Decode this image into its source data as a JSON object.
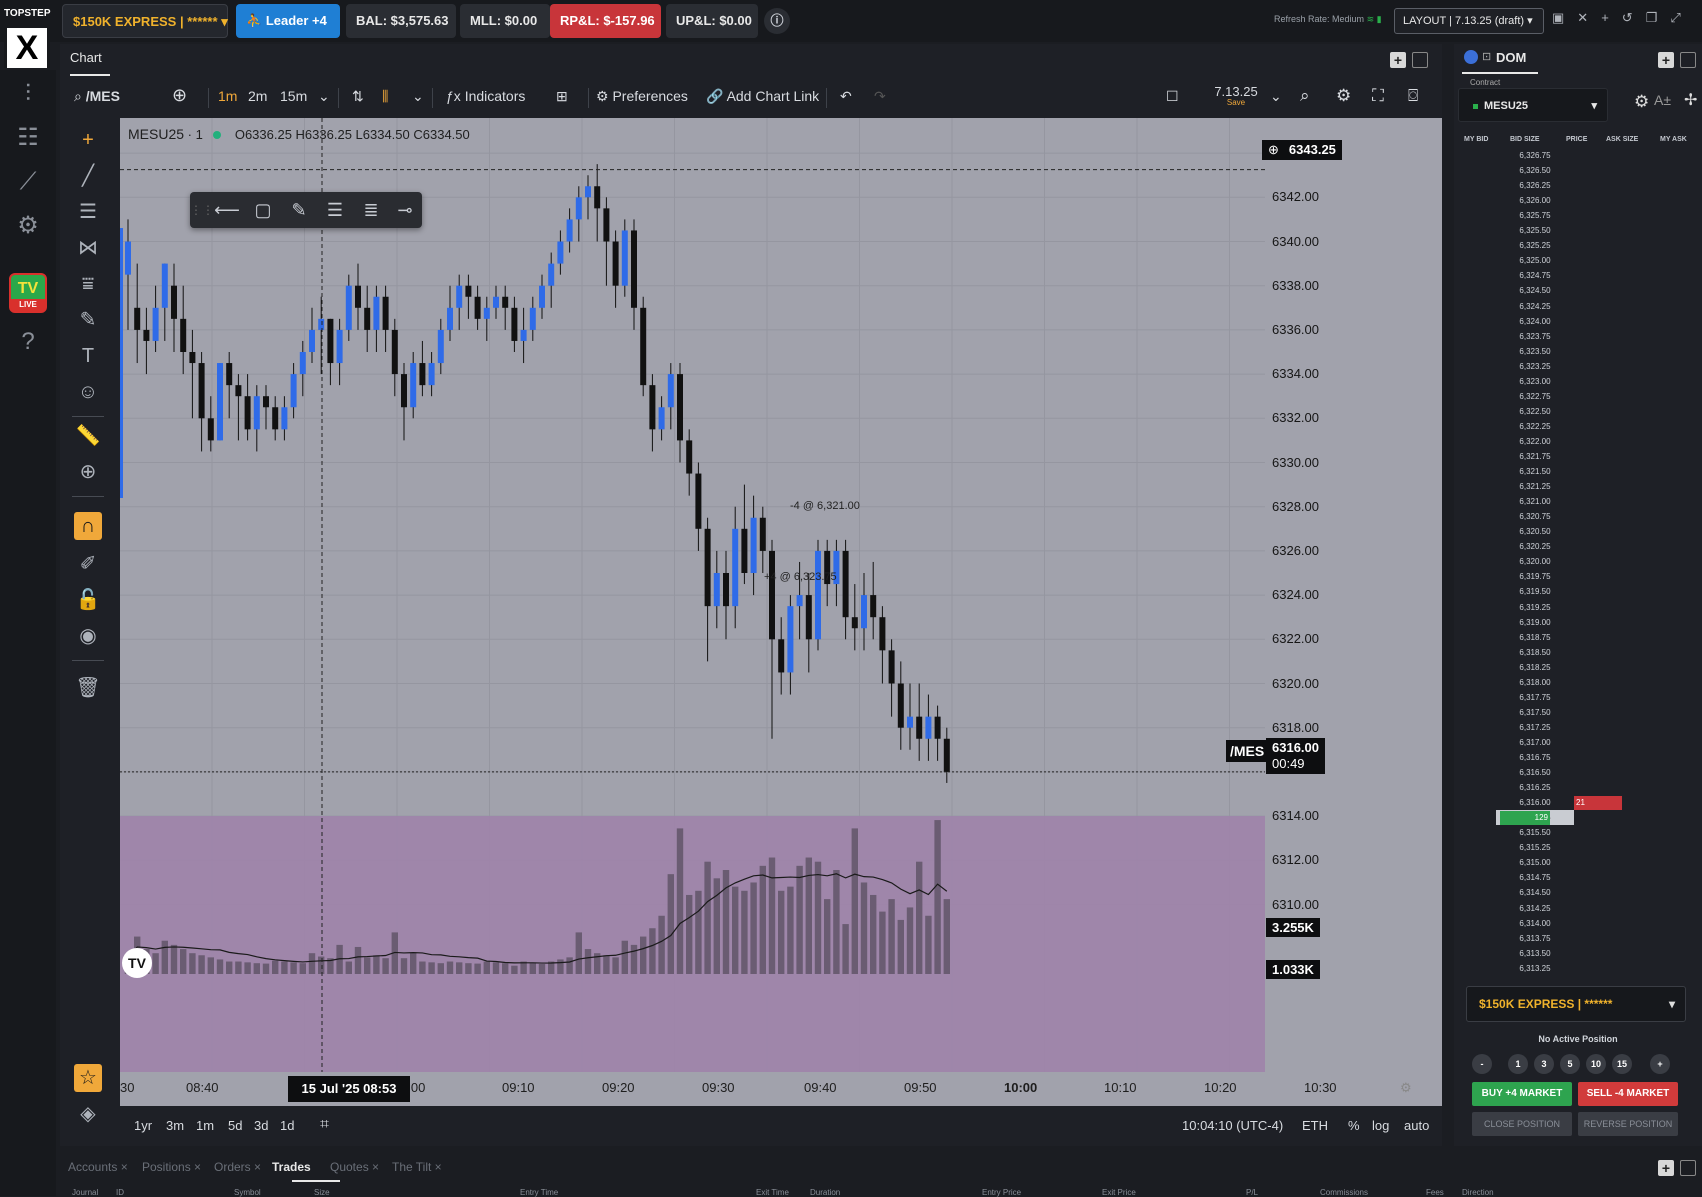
{
  "topbar": {
    "brand_top": "TOPSTEP",
    "brand_mark": "X",
    "account": "$150K EXPRESS | ******",
    "leader": "Leader +4",
    "balance": "BAL: $3,575.63",
    "mll": "MLL: $0.00",
    "rpl": "RP&L: $-157.96",
    "upl": "UP&L: $0.00",
    "refresh": "Refresh Rate: Medium",
    "layout": "LAYOUT | 7.13.25 (draft)"
  },
  "leftnav": {
    "tv_label": "TV",
    "live_label": "LIVE"
  },
  "chart_panel": {
    "tab": "Chart",
    "symbol_search": "/MES",
    "intervals": [
      "1m",
      "2m",
      "15m"
    ],
    "indicators": "Indicators",
    "preferences": "Preferences",
    "add_chart_link": "Add Chart Link",
    "layout_name": "7.13.25",
    "layout_save": "Save"
  },
  "chart": {
    "legend": {
      "symbol": "MESU25",
      "interval": "1",
      "ohlc": "O6336.25  H6336.25  L6334.50  C6334.50"
    },
    "price_ticks": [
      "6344.00",
      "6342.00",
      "6340.00",
      "6338.00",
      "6336.00",
      "6334.00",
      "6332.00",
      "6330.00",
      "6328.00",
      "6326.00",
      "6324.00",
      "6322.00",
      "6320.00",
      "6318.00",
      "6314.00",
      "6312.00",
      "6310.00"
    ],
    "crosshair_price": "6343.25",
    "last_symbol": "/MES",
    "last_price": "6316.00",
    "countdown": "00:49",
    "volume_label_high": "3.255K",
    "volume_label_low": "1.033K",
    "order_label_1": "-4 @ 6,321.00",
    "order_label_2": "+4 @ 6,323.75",
    "time_ticks": [
      "30",
      "08:40",
      "9:00",
      "09:10",
      "09:20",
      "09:30",
      "09:40",
      "09:50",
      "10:00",
      "10:10",
      "10:20",
      "10:30"
    ],
    "cursor_time": "15 Jul '25   08:53",
    "ranges": [
      "1yr",
      "3m",
      "1m",
      "5d",
      "3d",
      "1d"
    ],
    "clock": "10:04:10 (UTC-4)",
    "session": "ETH",
    "scale_pct": "%",
    "scale_log": "log",
    "scale_auto": "auto"
  },
  "chart_data": {
    "type": "candlestick",
    "symbol": "MESU25",
    "interval": "1",
    "ylim": [
      6309,
      6345
    ],
    "candles": [
      [
        6338.5,
        6340.0,
        6337.0,
        6341.0,
        6336.0
      ],
      [
        6337.0,
        6336.0,
        6335.0,
        6339.0,
        6334.5
      ],
      [
        6336.0,
        6335.5,
        6334.5,
        6337.0,
        6334.0
      ],
      [
        6335.5,
        6337.0,
        6335.0,
        6338.0,
        6335.0
      ],
      [
        6337.0,
        6339.0,
        6336.0,
        6339.0,
        6335.5
      ],
      [
        6338.0,
        6336.5,
        6335.5,
        6339.0,
        6335.0
      ],
      [
        6336.5,
        6335.0,
        6334.0,
        6338.0,
        6334.0
      ],
      [
        6335.0,
        6334.5,
        6332.5,
        6336.0,
        6332.0
      ],
      [
        6334.5,
        6332.0,
        6330.5,
        6335.0,
        6330.5
      ],
      [
        6332.0,
        6331.0,
        6330.5,
        6333.0,
        6330.5
      ],
      [
        6331.0,
        6334.5,
        6331.0,
        6334.5,
        6331.0
      ],
      [
        6334.5,
        6333.5,
        6332.0,
        6335.0,
        6332.0
      ],
      [
        6333.5,
        6333.0,
        6331.5,
        6334.0,
        6331.0
      ],
      [
        6333.0,
        6331.5,
        6331.0,
        6334.0,
        6331.0
      ],
      [
        6331.5,
        6333.0,
        6331.0,
        6333.5,
        6330.5
      ],
      [
        6333.0,
        6332.5,
        6332.0,
        6333.5,
        6331.5
      ],
      [
        6332.5,
        6331.5,
        6331.0,
        6333.0,
        6331.0
      ],
      [
        6331.5,
        6332.5,
        6331.0,
        6333.0,
        6331.0
      ],
      [
        6332.5,
        6334.0,
        6332.0,
        6334.5,
        6332.0
      ],
      [
        6334.0,
        6335.0,
        6333.5,
        6335.5,
        6333.0
      ],
      [
        6335.0,
        6336.0,
        6334.5,
        6337.0,
        6334.5
      ],
      [
        6336.0,
        6336.5,
        6335.0,
        6337.5,
        6334.0
      ],
      [
        6336.5,
        6334.5,
        6334.0,
        6336.5,
        6333.5
      ],
      [
        6334.5,
        6336.0,
        6334.0,
        6336.5,
        6333.5
      ],
      [
        6336.0,
        6338.0,
        6336.0,
        6338.5,
        6335.5
      ],
      [
        6338.0,
        6337.0,
        6336.5,
        6339.0,
        6336.0
      ],
      [
        6337.0,
        6336.0,
        6335.5,
        6338.0,
        6335.0
      ],
      [
        6336.0,
        6337.5,
        6335.5,
        6338.0,
        6335.0
      ],
      [
        6337.5,
        6336.0,
        6335.5,
        6338.0,
        6335.0
      ],
      [
        6336.0,
        6334.0,
        6333.5,
        6336.5,
        6333.0
      ],
      [
        6334.0,
        6332.5,
        6332.0,
        6334.5,
        6331.0
      ],
      [
        6332.5,
        6334.5,
        6332.0,
        6335.0,
        6332.0
      ],
      [
        6334.5,
        6333.5,
        6333.0,
        6335.5,
        6333.0
      ],
      [
        6333.5,
        6334.5,
        6333.0,
        6335.0,
        6333.0
      ],
      [
        6334.5,
        6336.0,
        6334.0,
        6336.5,
        6334.0
      ],
      [
        6336.0,
        6337.0,
        6335.5,
        6338.0,
        6335.5
      ],
      [
        6337.0,
        6338.0,
        6336.5,
        6338.5,
        6336.0
      ],
      [
        6338.0,
        6337.5,
        6337.0,
        6338.5,
        6336.5
      ],
      [
        6337.5,
        6336.5,
        6336.0,
        6338.0,
        6336.0
      ],
      [
        6336.5,
        6337.0,
        6336.0,
        6337.5,
        6335.5
      ],
      [
        6337.0,
        6337.5,
        6336.5,
        6338.0,
        6336.5
      ],
      [
        6337.5,
        6337.0,
        6336.5,
        6338.0,
        6336.0
      ],
      [
        6337.0,
        6335.5,
        6335.0,
        6337.5,
        6335.0
      ],
      [
        6335.5,
        6336.0,
        6335.0,
        6337.0,
        6334.5
      ],
      [
        6336.0,
        6337.0,
        6335.5,
        6337.5,
        6335.5
      ],
      [
        6337.0,
        6338.0,
        6336.5,
        6338.5,
        6336.5
      ],
      [
        6338.0,
        6339.0,
        6337.5,
        6339.5,
        6337.0
      ],
      [
        6339.0,
        6340.0,
        6338.5,
        6340.5,
        6338.5
      ],
      [
        6340.0,
        6341.0,
        6339.5,
        6341.5,
        6339.5
      ],
      [
        6341.0,
        6342.0,
        6340.5,
        6342.5,
        6340.0
      ],
      [
        6342.0,
        6342.5,
        6341.5,
        6343.0,
        6341.0
      ],
      [
        6342.5,
        6341.5,
        6340.0,
        6343.5,
        6340.0
      ],
      [
        6341.5,
        6340.0,
        6338.5,
        6342.0,
        6338.0
      ],
      [
        6340.0,
        6338.0,
        6337.0,
        6340.5,
        6337.0
      ],
      [
        6338.0,
        6340.5,
        6337.5,
        6341.0,
        6337.5
      ],
      [
        6340.5,
        6337.0,
        6336.0,
        6341.0,
        6336.0
      ],
      [
        6337.0,
        6333.5,
        6333.0,
        6337.5,
        6333.0
      ],
      [
        6333.5,
        6331.5,
        6331.0,
        6334.0,
        6330.5
      ],
      [
        6331.5,
        6332.5,
        6331.0,
        6333.0,
        6331.0
      ],
      [
        6332.5,
        6334.0,
        6332.0,
        6334.5,
        6331.5
      ],
      [
        6334.0,
        6331.0,
        6330.5,
        6334.5,
        6330.0
      ],
      [
        6331.0,
        6329.5,
        6329.0,
        6331.5,
        6328.5
      ],
      [
        6329.5,
        6327.0,
        6326.5,
        6330.0,
        6326.0
      ],
      [
        6327.0,
        6323.5,
        6322.0,
        6327.5,
        6321.0
      ],
      [
        6323.5,
        6325.0,
        6323.0,
        6326.0,
        6322.5
      ],
      [
        6325.0,
        6323.5,
        6322.5,
        6326.0,
        6322.0
      ],
      [
        6323.5,
        6327.0,
        6323.0,
        6328.0,
        6322.5
      ],
      [
        6327.0,
        6325.0,
        6324.5,
        6329.0,
        6324.5
      ],
      [
        6325.0,
        6327.5,
        6324.5,
        6328.5,
        6324.0
      ],
      [
        6327.5,
        6326.0,
        6325.5,
        6328.0,
        6325.0
      ],
      [
        6326.0,
        6322.0,
        6318.0,
        6326.5,
        6317.5
      ],
      [
        6322.0,
        6320.5,
        6320.0,
        6323.0,
        6319.5
      ],
      [
        6320.5,
        6323.5,
        6320.0,
        6324.0,
        6319.5
      ],
      [
        6323.5,
        6324.0,
        6322.5,
        6325.5,
        6322.0
      ],
      [
        6324.0,
        6322.0,
        6320.5,
        6325.0,
        6320.5
      ],
      [
        6322.0,
        6326.0,
        6321.5,
        6326.5,
        6321.5
      ],
      [
        6326.0,
        6324.5,
        6324.0,
        6326.5,
        6323.5
      ],
      [
        6324.5,
        6326.0,
        6324.0,
        6326.5,
        6323.5
      ],
      [
        6326.0,
        6323.0,
        6322.5,
        6326.5,
        6322.0
      ],
      [
        6323.0,
        6322.5,
        6322.0,
        6324.5,
        6321.5
      ],
      [
        6322.5,
        6324.0,
        6322.0,
        6325.0,
        6321.5
      ],
      [
        6324.0,
        6323.0,
        6322.5,
        6325.5,
        6322.0
      ],
      [
        6323.0,
        6321.5,
        6320.5,
        6323.5,
        6320.0
      ],
      [
        6321.5,
        6320.0,
        6319.0,
        6322.0,
        6318.5
      ],
      [
        6320.0,
        6318.0,
        6317.5,
        6321.0,
        6317.0
      ],
      [
        6318.0,
        6318.5,
        6317.5,
        6320.0,
        6317.0
      ],
      [
        6318.5,
        6317.5,
        6317.0,
        6320.0,
        6316.5
      ],
      [
        6317.5,
        6318.5,
        6317.0,
        6319.5,
        6316.5
      ],
      [
        6318.5,
        6317.5,
        6317.0,
        6319.0,
        6316.5
      ],
      [
        6317.5,
        6316.0,
        6315.5,
        6318.0,
        6315.5
      ]
    ],
    "volume_ylim": [
      0,
      5000
    ],
    "volumes": [
      400,
      900,
      600,
      500,
      800,
      700,
      600,
      500,
      450,
      400,
      350,
      300,
      300,
      280,
      260,
      250,
      320,
      300,
      280,
      260,
      500,
      420,
      380,
      700,
      300,
      650,
      400,
      450,
      380,
      1000,
      380,
      500,
      300,
      280,
      260,
      300,
      280,
      260,
      250,
      300,
      280,
      260,
      200,
      300,
      260,
      240,
      300,
      350,
      400,
      1000,
      600,
      500,
      450,
      400,
      800,
      700,
      900,
      1100,
      1400,
      2400,
      3500,
      1900,
      2000,
      2700,
      2300,
      2500,
      2100,
      2000,
      2200,
      2600,
      2800,
      2000,
      2100,
      2600,
      2800,
      2700,
      1800,
      2500,
      1200,
      3500,
      2200,
      1900,
      1500,
      1800,
      1300,
      1600,
      2700,
      1400,
      3700,
      1800
    ]
  },
  "dom": {
    "tab": "DOM",
    "contract_label": "Contract",
    "contract": "MESU25",
    "headers": [
      "MY BID",
      "BID SIZE",
      "PRICE",
      "ASK SIZE",
      "MY ASK"
    ],
    "prices": [
      "6,326.75",
      "6,326.50",
      "6,326.25",
      "6,326.00",
      "6,325.75",
      "6,325.50",
      "6,325.25",
      "6,325.00",
      "6,324.75",
      "6,324.50",
      "6,324.25",
      "6,324.00",
      "6,323.75",
      "6,323.50",
      "6,323.25",
      "6,323.00",
      "6,322.75",
      "6,322.50",
      "6,322.25",
      "6,322.00",
      "6,321.75",
      "6,321.50",
      "6,321.25",
      "6,321.00",
      "6,320.75",
      "6,320.50",
      "6,320.25",
      "6,320.00",
      "6,319.75",
      "6,319.50",
      "6,319.25",
      "6,319.00",
      "6,318.75",
      "6,318.50",
      "6,318.25",
      "6,318.00",
      "6,317.75",
      "6,317.50",
      "6,317.25",
      "6,317.00",
      "6,316.75",
      "6,316.50",
      "6,316.25",
      "6,316.00",
      "6,315.75",
      "6,315.50",
      "6,315.25",
      "6,315.00",
      "6,314.75",
      "6,314.50",
      "6,314.25",
      "6,314.00",
      "6,313.75",
      "6,313.50",
      "6,313.25"
    ],
    "bid_size": "129",
    "ask_size": "21",
    "account": "$150K EXPRESS | ******",
    "no_position": "No Active Position",
    "qty_minus": "-",
    "qty_plus": "+",
    "quantities": [
      "1",
      "3",
      "5",
      "10",
      "15"
    ],
    "buy": "BUY +4 MARKET",
    "sell": "SELL -4 MARKET",
    "close": "CLOSE POSITION",
    "reverse": "REVERSE POSITION"
  },
  "bottom": {
    "tabs": [
      "Accounts",
      "Positions",
      "Orders",
      "Trades",
      "Quotes",
      "The Tilt"
    ],
    "active": "Trades",
    "columns": [
      "Journal",
      "ID",
      "Symbol",
      "Size",
      "Entry Time",
      "Exit Time",
      "Duration",
      "Entry Price",
      "Exit Price",
      "P/L",
      "Commissions",
      "Fees",
      "Direction"
    ]
  }
}
